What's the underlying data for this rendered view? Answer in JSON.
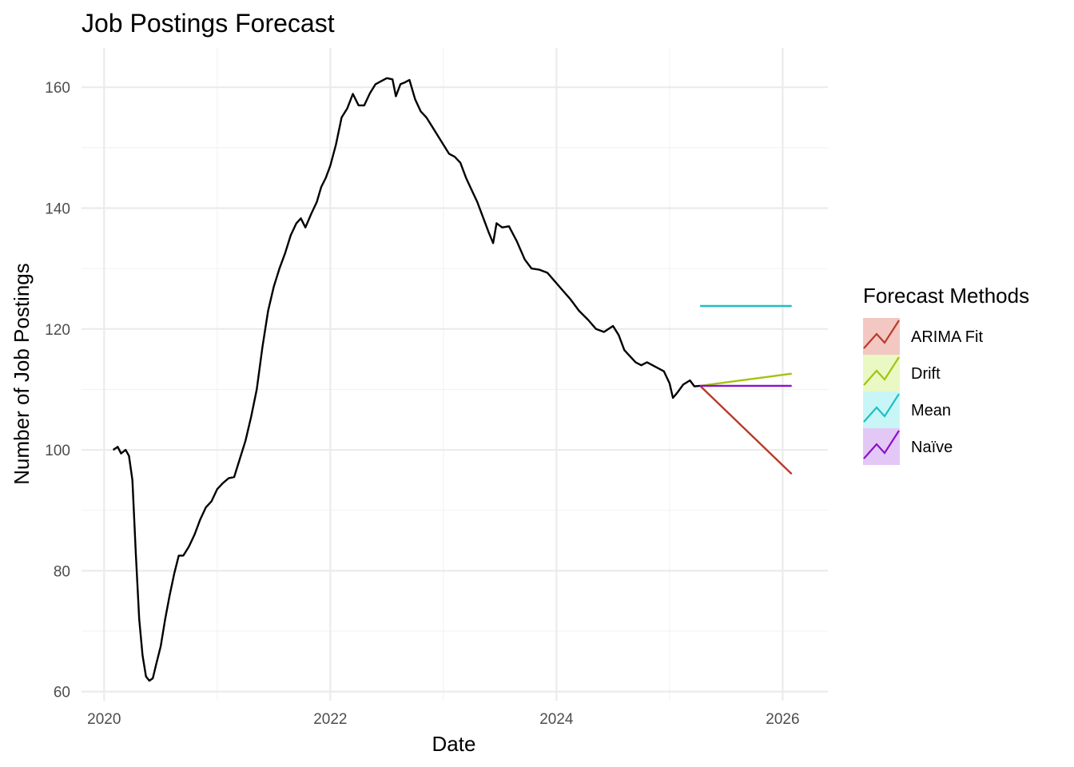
{
  "chart_data": {
    "type": "line",
    "title": "Job Postings Forecast",
    "xlabel": "Date",
    "ylabel": "Number of Job Postings",
    "xlim": [
      2019.8,
      2026.4
    ],
    "ylim": [
      58.5,
      166.5
    ],
    "x_ticks": [
      2020,
      2022,
      2024,
      2026
    ],
    "y_ticks": [
      60,
      80,
      100,
      120,
      140,
      160
    ],
    "grid": true,
    "history": {
      "color": "#000000",
      "points": [
        [
          2020.08,
          100.0
        ],
        [
          2020.12,
          100.5
        ],
        [
          2020.15,
          99.4
        ],
        [
          2020.19,
          100.0
        ],
        [
          2020.22,
          99.0
        ],
        [
          2020.25,
          95.0
        ],
        [
          2020.28,
          83.0
        ],
        [
          2020.31,
          72.0
        ],
        [
          2020.34,
          66.0
        ],
        [
          2020.37,
          62.5
        ],
        [
          2020.4,
          61.8
        ],
        [
          2020.43,
          62.2
        ],
        [
          2020.46,
          64.5
        ],
        [
          2020.5,
          67.5
        ],
        [
          2020.54,
          72.0
        ],
        [
          2020.58,
          76.0
        ],
        [
          2020.62,
          79.5
        ],
        [
          2020.66,
          82.5
        ],
        [
          2020.7,
          82.5
        ],
        [
          2020.75,
          84.0
        ],
        [
          2020.8,
          86.0
        ],
        [
          2020.85,
          88.5
        ],
        [
          2020.9,
          90.5
        ],
        [
          2020.95,
          91.5
        ],
        [
          2021.0,
          93.5
        ],
        [
          2021.05,
          94.5
        ],
        [
          2021.1,
          95.3
        ],
        [
          2021.15,
          95.5
        ],
        [
          2021.2,
          98.5
        ],
        [
          2021.25,
          101.5
        ],
        [
          2021.3,
          105.5
        ],
        [
          2021.35,
          110.0
        ],
        [
          2021.4,
          117.0
        ],
        [
          2021.45,
          123.0
        ],
        [
          2021.5,
          127.0
        ],
        [
          2021.55,
          130.0
        ],
        [
          2021.6,
          132.5
        ],
        [
          2021.65,
          135.5
        ],
        [
          2021.7,
          137.5
        ],
        [
          2021.74,
          138.3
        ],
        [
          2021.78,
          136.8
        ],
        [
          2021.83,
          139.0
        ],
        [
          2021.88,
          141.0
        ],
        [
          2021.92,
          143.5
        ],
        [
          2021.96,
          145.0
        ],
        [
          2022.0,
          147.0
        ],
        [
          2022.05,
          150.5
        ],
        [
          2022.1,
          155.0
        ],
        [
          2022.15,
          156.5
        ],
        [
          2022.2,
          158.9
        ],
        [
          2022.25,
          157.0
        ],
        [
          2022.3,
          157.0
        ],
        [
          2022.35,
          159.0
        ],
        [
          2022.4,
          160.5
        ],
        [
          2022.45,
          161.0
        ],
        [
          2022.5,
          161.5
        ],
        [
          2022.55,
          161.3
        ],
        [
          2022.58,
          158.5
        ],
        [
          2022.62,
          160.5
        ],
        [
          2022.66,
          160.8
        ],
        [
          2022.7,
          161.2
        ],
        [
          2022.75,
          158.0
        ],
        [
          2022.8,
          156.0
        ],
        [
          2022.85,
          155.0
        ],
        [
          2022.9,
          153.5
        ],
        [
          2022.95,
          152.0
        ],
        [
          2023.0,
          150.5
        ],
        [
          2023.05,
          149.0
        ],
        [
          2023.1,
          148.5
        ],
        [
          2023.15,
          147.5
        ],
        [
          2023.2,
          145.0
        ],
        [
          2023.25,
          143.0
        ],
        [
          2023.3,
          141.0
        ],
        [
          2023.35,
          138.5
        ],
        [
          2023.4,
          136.0
        ],
        [
          2023.44,
          134.2
        ],
        [
          2023.47,
          137.5
        ],
        [
          2023.52,
          136.8
        ],
        [
          2023.58,
          137.0
        ],
        [
          2023.65,
          134.5
        ],
        [
          2023.72,
          131.5
        ],
        [
          2023.78,
          130.0
        ],
        [
          2023.85,
          129.8
        ],
        [
          2023.92,
          129.3
        ],
        [
          2023.98,
          128.0
        ],
        [
          2024.05,
          126.5
        ],
        [
          2024.12,
          125.0
        ],
        [
          2024.2,
          123.0
        ],
        [
          2024.28,
          121.5
        ],
        [
          2024.35,
          120.0
        ],
        [
          2024.42,
          119.5
        ],
        [
          2024.5,
          120.5
        ],
        [
          2024.55,
          119.0
        ],
        [
          2024.6,
          116.5
        ],
        [
          2024.65,
          115.5
        ],
        [
          2024.7,
          114.5
        ],
        [
          2024.75,
          114.0
        ],
        [
          2024.8,
          114.5
        ],
        [
          2024.85,
          114.0
        ],
        [
          2024.9,
          113.5
        ],
        [
          2024.95,
          113.0
        ],
        [
          2025.0,
          111.0
        ],
        [
          2025.03,
          108.6
        ],
        [
          2025.07,
          109.5
        ],
        [
          2025.12,
          110.8
        ],
        [
          2025.18,
          111.5
        ],
        [
          2025.22,
          110.5
        ],
        [
          2025.27,
          110.6
        ]
      ]
    },
    "series": [
      {
        "name": "ARIMA Fit",
        "color": "#b83a2b",
        "band_color": "#f3c8c3",
        "x": [
          2025.27,
          2026.08
        ],
        "y": [
          110.6,
          96.0
        ]
      },
      {
        "name": "Drift",
        "color": "#a2c30e",
        "band_color": "#eaf8c4",
        "x": [
          2025.27,
          2026.08
        ],
        "y": [
          110.6,
          112.6
        ]
      },
      {
        "name": "Mean",
        "color": "#1dbfc3",
        "band_color": "#c8f6f7",
        "x": [
          2025.27,
          2026.08
        ],
        "y": [
          123.8,
          123.8
        ]
      },
      {
        "name": "Naïve",
        "color": "#8b10c8",
        "band_color": "#e3c8f6",
        "x": [
          2025.27,
          2026.08
        ],
        "y": [
          110.6,
          110.6
        ]
      }
    ],
    "legend": {
      "title": "Forecast Methods",
      "placement": "right"
    }
  }
}
